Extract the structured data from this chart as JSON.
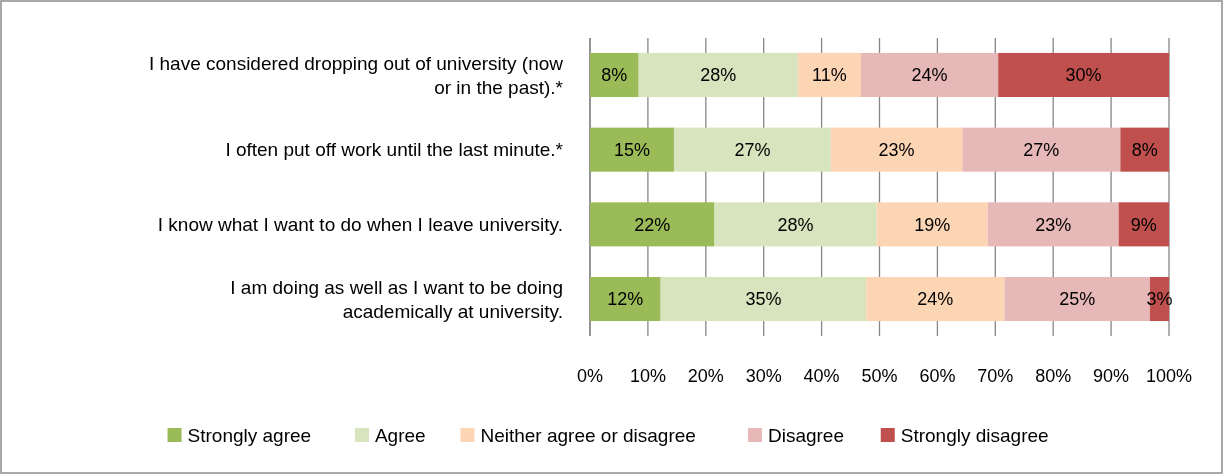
{
  "chart_data": {
    "type": "bar",
    "orientation": "horizontal",
    "stacked": true,
    "categories": [
      "I have considered dropping out of university (now or in the past).*",
      "I often put off work until the last minute.*",
      "I know what I want to do when I leave university.",
      "I am doing as well as I want to be doing academically at university."
    ],
    "series": [
      {
        "name": "Strongly agree",
        "color": "#9bbb59",
        "values": [
          8.4,
          14.5,
          21.5,
          12.2
        ],
        "value_labels": [
          "8%",
          "15%",
          "22%",
          "12%"
        ]
      },
      {
        "name": "Agree",
        "color": "#d7e4bd",
        "values": [
          27.5,
          27.1,
          28.0,
          35.5
        ],
        "value_labels": [
          "28%",
          "27%",
          "28%",
          "35%"
        ]
      },
      {
        "name": "Neither agree or disagree",
        "color": "#fcd5b5",
        "values": [
          10.9,
          22.7,
          19.2,
          23.9
        ],
        "value_labels": [
          "11%",
          "23%",
          "19%",
          "24%"
        ]
      },
      {
        "name": "Disagree",
        "color": "#e6b9b8",
        "values": [
          23.7,
          27.3,
          22.6,
          25.1
        ],
        "value_labels": [
          "24%",
          "27%",
          "23%",
          "25%"
        ]
      },
      {
        "name": "Strongly disagree",
        "color": "#c0504d",
        "values": [
          29.5,
          8.4,
          8.7,
          3.3
        ],
        "value_labels": [
          "30%",
          "8%",
          "9%",
          "3%"
        ]
      }
    ],
    "xlim": [
      0,
      100
    ],
    "xticks": [
      {
        "value": 0,
        "label": "0%"
      },
      {
        "value": 10,
        "label": "10%"
      },
      {
        "value": 20,
        "label": "20%"
      },
      {
        "value": 30,
        "label": "30%"
      },
      {
        "value": 40,
        "label": "40%"
      },
      {
        "value": 50,
        "label": "50%"
      },
      {
        "value": 60,
        "label": "60%"
      },
      {
        "value": 70,
        "label": "70%"
      },
      {
        "value": 80,
        "label": "80%"
      },
      {
        "value": 90,
        "label": "90%"
      },
      {
        "value": 100,
        "label": "100%"
      }
    ],
    "grid": "x",
    "legend": "bottom"
  }
}
